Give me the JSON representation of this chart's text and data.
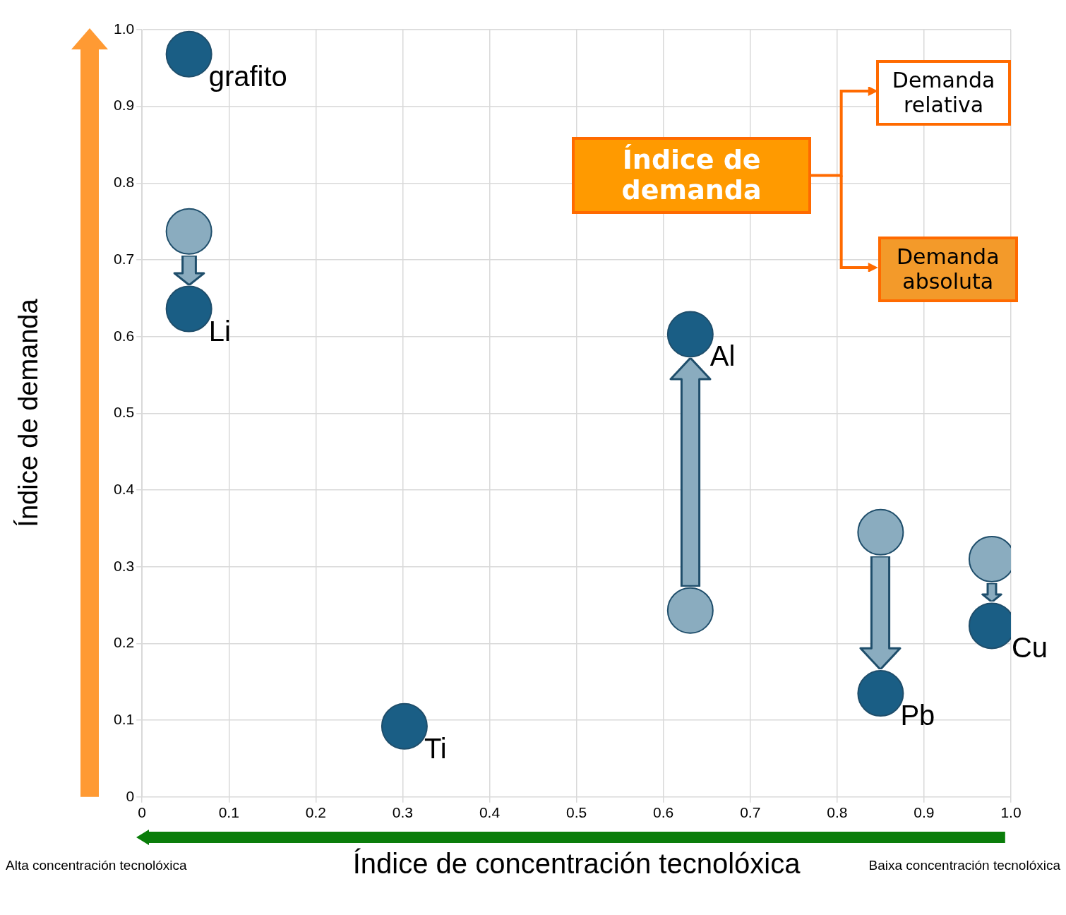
{
  "chart_data": {
    "type": "scatter",
    "xlabel": "Índice de concentración tecnolóxica",
    "ylabel": "Índice de demanda",
    "xlim": [
      0,
      1
    ],
    "ylim": [
      0,
      1
    ],
    "xticks": [
      0,
      0.1,
      0.2,
      0.3,
      0.4,
      0.5,
      0.6,
      0.7,
      0.8,
      0.9,
      {
        "value": 1,
        "label": "1.0"
      }
    ],
    "yticks": [
      0,
      0.1,
      0.2,
      0.3,
      0.4,
      0.5,
      0.6,
      0.7,
      0.8,
      0.9,
      {
        "value": 1,
        "label": "1.0"
      }
    ],
    "grid": true,
    "legend": false,
    "marker": "circle",
    "series": [
      {
        "color": "#1a5e85",
        "x": [
          0.054,
          0.054,
          0.631,
          0.302,
          0.85,
          0.978
        ],
        "values": [
          0.968,
          0.636,
          0.603,
          0.092,
          0.135,
          0.223
        ]
      },
      {
        "color": "#8aacbf",
        "x": [
          0.054,
          0.631,
          0.85,
          0.978
        ],
        "values": [
          0.737,
          0.243,
          0.345,
          0.31
        ]
      }
    ],
    "annotations": [
      "Índice de demanda",
      "Demanda relativa",
      "Demanda absoluta",
      "Alta concentración tecnolóxica",
      "Baixa concentración tecnolóxica",
      {
        "text": "grafito",
        "x": 0.054,
        "y": 0.968
      },
      {
        "text": "Li",
        "x": 0.054,
        "y": 0.636
      },
      {
        "text": "Al",
        "x": 0.631,
        "y": 0.603
      },
      {
        "text": "Ti",
        "x": 0.302,
        "y": 0.092
      },
      {
        "text": "Pb",
        "x": 0.85,
        "y": 0.135
      },
      {
        "text": "Cu",
        "x": 0.978,
        "y": 0.223
      }
    ]
  }
}
